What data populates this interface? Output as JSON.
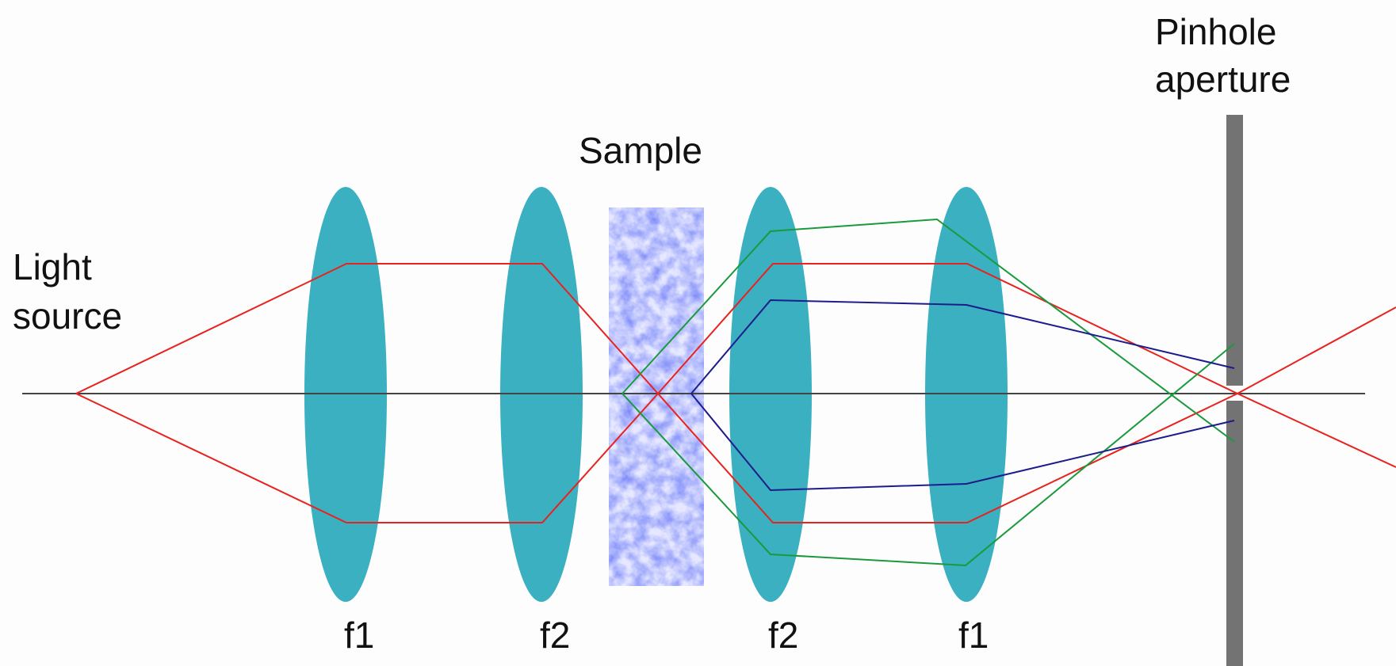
{
  "labels": {
    "light_source_line1": "Light",
    "light_source_line2": "source",
    "sample": "Sample",
    "pinhole_line1": "Pinhole",
    "pinhole_line2": "aperture",
    "lens_f1_left": "f1",
    "lens_f2_left": "f2",
    "lens_f2_right": "f2",
    "lens_f1_right": "f1"
  },
  "colors": {
    "background": "#fdfdfd",
    "lens": "#3ab0c0",
    "axis": "#444444",
    "ray_red": "#e8221e",
    "ray_green": "#1a9a3c",
    "ray_blue": "#1c1c8c",
    "aperture": "#737373",
    "sample_light": "#e6e8ff",
    "sample_dark": "#1f2fe0"
  }
}
